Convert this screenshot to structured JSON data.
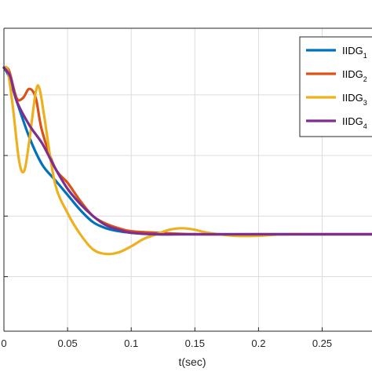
{
  "chart_data": {
    "type": "line",
    "title": "",
    "xlabel": "t(sec)",
    "ylabel": "",
    "xlim": [
      0,
      0.29
    ],
    "ylim": [
      0,
      1
    ],
    "x_ticks": [
      0,
      0.05,
      0.1,
      0.15,
      0.2,
      0.25
    ],
    "x_tick_labels": [
      "0",
      "0.05",
      "0.1",
      "0.15",
      "0.2",
      "0.25"
    ],
    "y_tick_values": [
      0.18,
      0.38,
      0.58,
      0.78
    ],
    "grid": true,
    "legend_position": "top-right",
    "colors": [
      "#0072BD",
      "#D95319",
      "#EDB120",
      "#7E2F8E"
    ],
    "series": [
      {
        "name": "IIDG1",
        "label_main": "IIDG",
        "label_sub": "1",
        "color": "#0072BD",
        "x": [
          0,
          0.004,
          0.01,
          0.02,
          0.03,
          0.04,
          0.05,
          0.06,
          0.07,
          0.08,
          0.09,
          0.1,
          0.12,
          0.15,
          0.2,
          0.25,
          0.29
        ],
        "y": [
          0.87,
          0.84,
          0.76,
          0.64,
          0.55,
          0.5,
          0.45,
          0.4,
          0.36,
          0.34,
          0.33,
          0.325,
          0.32,
          0.32,
          0.32,
          0.32,
          0.32
        ]
      },
      {
        "name": "IIDG2",
        "label_main": "IIDG",
        "label_sub": "2",
        "color": "#D95319",
        "x": [
          0,
          0.004,
          0.01,
          0.015,
          0.02,
          0.025,
          0.03,
          0.04,
          0.05,
          0.06,
          0.07,
          0.08,
          0.09,
          0.1,
          0.12,
          0.15,
          0.2,
          0.25,
          0.29
        ],
        "y": [
          0.87,
          0.86,
          0.77,
          0.77,
          0.8,
          0.77,
          0.66,
          0.54,
          0.49,
          0.43,
          0.38,
          0.355,
          0.34,
          0.33,
          0.325,
          0.32,
          0.32,
          0.32,
          0.32
        ]
      },
      {
        "name": "IIDG3",
        "label_main": "IIDG",
        "label_sub": "3",
        "color": "#EDB120",
        "x": [
          0,
          0.003,
          0.007,
          0.012,
          0.016,
          0.02,
          0.025,
          0.028,
          0.032,
          0.04,
          0.05,
          0.06,
          0.07,
          0.08,
          0.09,
          0.1,
          0.11,
          0.12,
          0.13,
          0.14,
          0.15,
          0.16,
          0.18,
          0.2,
          0.22,
          0.25,
          0.29
        ],
        "y": [
          0.87,
          0.86,
          0.74,
          0.56,
          0.53,
          0.63,
          0.79,
          0.8,
          0.7,
          0.49,
          0.39,
          0.32,
          0.27,
          0.255,
          0.26,
          0.28,
          0.305,
          0.32,
          0.335,
          0.34,
          0.335,
          0.325,
          0.315,
          0.315,
          0.32,
          0.32,
          0.32
        ]
      },
      {
        "name": "IIDG4",
        "label_main": "IIDG",
        "label_sub": "4",
        "color": "#7E2F8E",
        "x": [
          0,
          0.005,
          0.01,
          0.02,
          0.03,
          0.04,
          0.05,
          0.06,
          0.07,
          0.08,
          0.09,
          0.1,
          0.12,
          0.15,
          0.2,
          0.25,
          0.29
        ],
        "y": [
          0.87,
          0.84,
          0.76,
          0.68,
          0.62,
          0.54,
          0.47,
          0.42,
          0.38,
          0.35,
          0.335,
          0.325,
          0.32,
          0.32,
          0.32,
          0.32,
          0.32
        ]
      }
    ]
  }
}
